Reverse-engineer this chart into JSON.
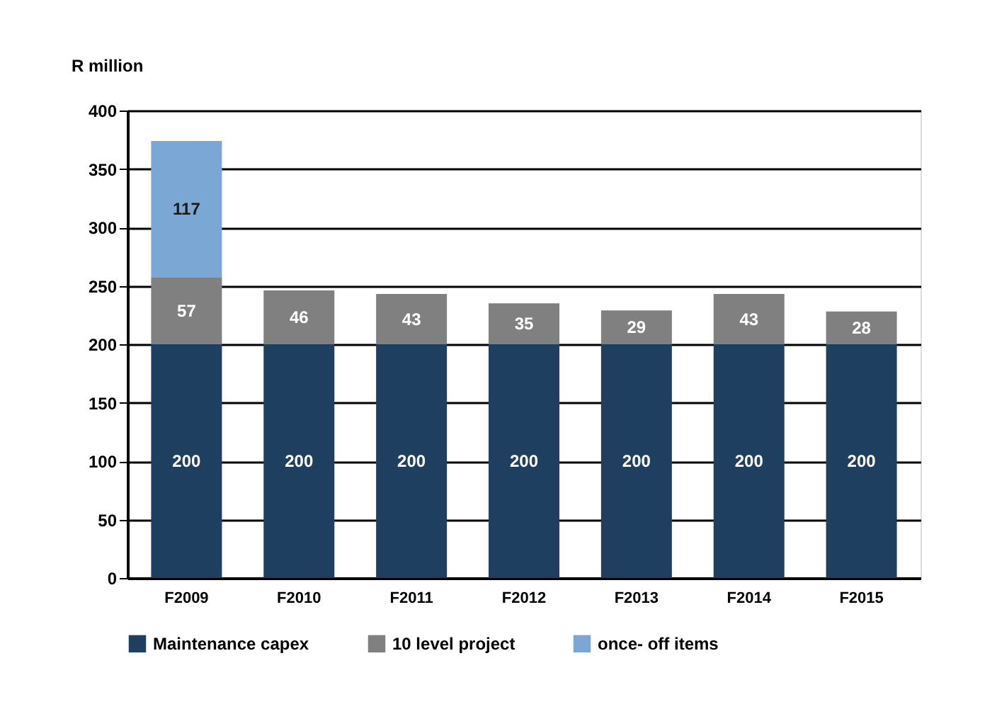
{
  "chart_data": {
    "type": "bar",
    "stacked": true,
    "ylabel": "R million",
    "categories": [
      "F2009",
      "F2010",
      "F2011",
      "F2012",
      "F2013",
      "F2014",
      "F2015"
    ],
    "series": [
      {
        "name": "Maintenance capex",
        "color": "#1f3f60",
        "values": [
          200,
          200,
          200,
          200,
          200,
          200,
          200
        ]
      },
      {
        "name": "10 level project",
        "color": "#808080",
        "values": [
          57,
          46,
          43,
          35,
          29,
          43,
          28
        ]
      },
      {
        "name": "once- off items",
        "color": "#7ba7d4",
        "values": [
          117,
          null,
          null,
          null,
          null,
          null,
          null
        ]
      }
    ],
    "ylim": [
      0,
      400
    ],
    "yticks": [
      0,
      50,
      100,
      150,
      200,
      250,
      300,
      350,
      400
    ],
    "grid": "y",
    "legend": "bottom",
    "data_labels": true
  }
}
